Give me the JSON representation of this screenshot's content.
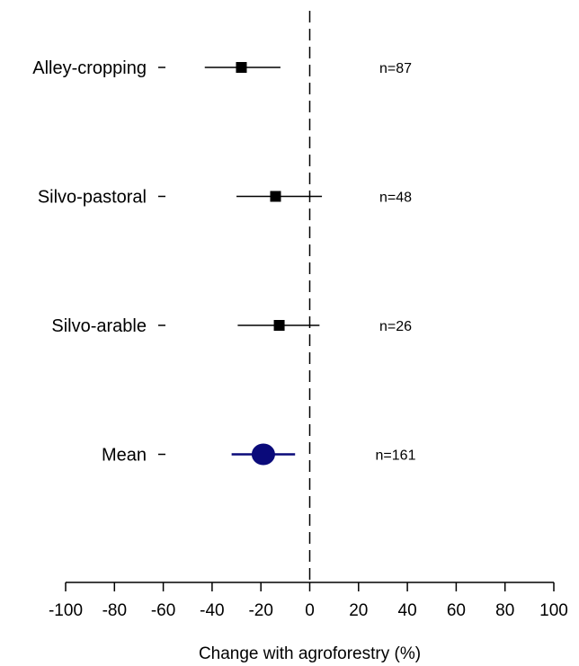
{
  "chart_data": {
    "type": "scatter",
    "subtype": "forest-plot",
    "xlabel": "Change with agroforestry (%)",
    "xlim": [
      -100,
      100
    ],
    "xticks": [
      -100,
      -80,
      -60,
      -40,
      -20,
      0,
      20,
      40,
      60,
      80,
      100
    ],
    "reference_line": {
      "x": 0,
      "style": "dashed"
    },
    "rows": [
      {
        "label": "Alley-cropping",
        "estimate": -28,
        "lower": -43,
        "upper": -12,
        "n_label": "n=87",
        "marker": "square",
        "color": "#000000"
      },
      {
        "label": "Silvo-pastoral",
        "estimate": -14,
        "lower": -30,
        "upper": 5,
        "n_label": "n=48",
        "marker": "square",
        "color": "#000000"
      },
      {
        "label": "Silvo-arable",
        "estimate": -12.5,
        "lower": -29.5,
        "upper": 4,
        "n_label": "n=26",
        "marker": "square",
        "color": "#000000"
      },
      {
        "label": "Mean",
        "estimate": -19,
        "lower": -32,
        "upper": -6,
        "n_label": "n=161",
        "marker": "circle",
        "color": "#0a0a7a"
      }
    ]
  }
}
